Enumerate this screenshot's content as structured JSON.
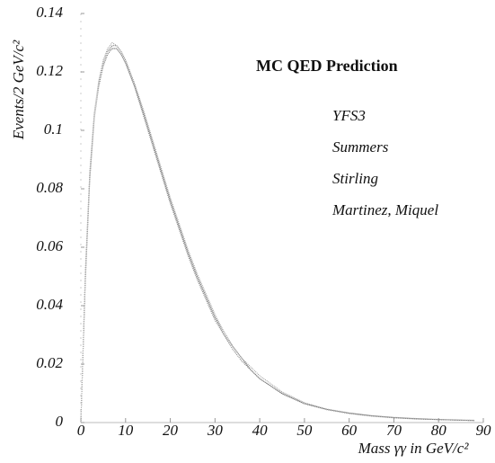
{
  "chart_data": {
    "type": "line",
    "title": "MC QED Prediction",
    "x_label": "Mass γγ in GeV/c²",
    "y_label": "Events/2 GeV/c²",
    "x": [
      0,
      1,
      2,
      3,
      4,
      5,
      6,
      7,
      8,
      9,
      10,
      12,
      14,
      16,
      18,
      20,
      22,
      24,
      26,
      28,
      30,
      32,
      34,
      36,
      38,
      40,
      45,
      50,
      55,
      60,
      65,
      70,
      75,
      80,
      85,
      88
    ],
    "series": [
      {
        "name": "YFS3",
        "color": "#555555",
        "values": [
          0,
          0.05,
          0.085,
          0.105,
          0.116,
          0.123,
          0.127,
          0.129,
          0.129,
          0.127,
          0.124,
          0.116,
          0.106,
          0.096,
          0.086,
          0.076,
          0.067,
          0.058,
          0.05,
          0.043,
          0.036,
          0.031,
          0.026,
          0.022,
          0.018,
          0.015,
          0.01,
          0.0065,
          0.0045,
          0.0032,
          0.0023,
          0.0017,
          0.0013,
          0.001,
          0.0008,
          0.0007
        ]
      },
      {
        "name": "Summers",
        "color": "#777777",
        "values": [
          0,
          0.048,
          0.083,
          0.104,
          0.115,
          0.122,
          0.126,
          0.128,
          0.128,
          0.126,
          0.123,
          0.115,
          0.105,
          0.095,
          0.085,
          0.075,
          0.066,
          0.057,
          0.049,
          0.042,
          0.035,
          0.03,
          0.025,
          0.021,
          0.018,
          0.015,
          0.0098,
          0.0064,
          0.0044,
          0.0031,
          0.0022,
          0.0016,
          0.0012,
          0.001,
          0.0008,
          0.0007
        ]
      },
      {
        "name": "Stirling",
        "color": "#999999",
        "values": [
          0,
          0.052,
          0.086,
          0.106,
          0.117,
          0.124,
          0.128,
          0.13,
          0.129,
          0.127,
          0.124,
          0.116,
          0.107,
          0.097,
          0.087,
          0.077,
          0.068,
          0.059,
          0.051,
          0.044,
          0.037,
          0.031,
          0.026,
          0.022,
          0.019,
          0.016,
          0.0105,
          0.0068,
          0.0046,
          0.0033,
          0.0024,
          0.0018,
          0.0014,
          0.0011,
          0.0009,
          0.0008
        ]
      },
      {
        "name": "Martinez, Miquel",
        "color": "#aaaaaa",
        "values": [
          0,
          0.049,
          0.084,
          0.104,
          0.116,
          0.123,
          0.127,
          0.128,
          0.128,
          0.126,
          0.123,
          0.115,
          0.106,
          0.096,
          0.086,
          0.076,
          0.067,
          0.058,
          0.05,
          0.043,
          0.036,
          0.03,
          0.026,
          0.022,
          0.018,
          0.015,
          0.01,
          0.0066,
          0.0045,
          0.0032,
          0.0023,
          0.0017,
          0.0013,
          0.001,
          0.0008,
          0.0007
        ]
      }
    ],
    "xlim": [
      0,
      90
    ],
    "xticks": [
      0,
      10,
      20,
      30,
      40,
      50,
      60,
      70,
      80,
      90
    ],
    "ylim": [
      0,
      0.14
    ],
    "yticks": [
      0,
      0.02,
      0.04,
      0.06,
      0.08,
      0.1,
      0.12,
      0.14
    ]
  }
}
